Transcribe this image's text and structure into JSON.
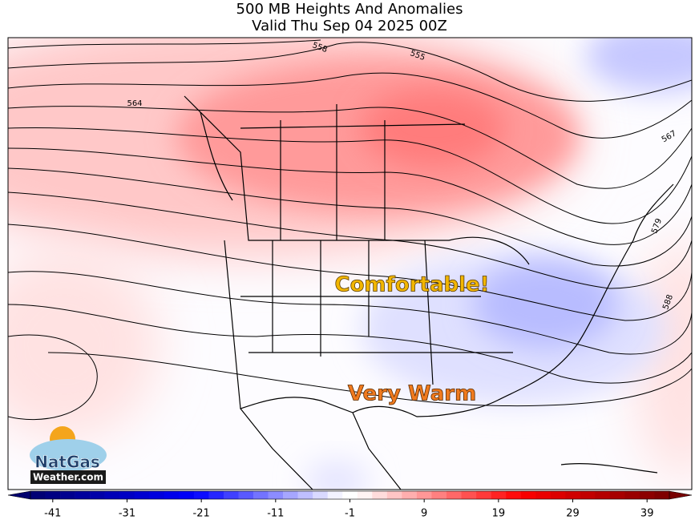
{
  "title": "500 MB Heights And Anomalies",
  "subtitle": "Valid Thu Sep 04 2025 00Z",
  "contour_labels": [
    "558",
    "555",
    "564",
    "567",
    "579",
    "588"
  ],
  "annotations": [
    "Comfortable!",
    "Very Warm"
  ],
  "logo": {
    "line1": "NatGas",
    "line2": "Weather.com"
  },
  "colorbar": {
    "range": [
      -44,
      42
    ],
    "step": 2,
    "ticks": [
      -41,
      -31,
      -21,
      -11,
      -1,
      9,
      19,
      29,
      39
    ]
  }
}
